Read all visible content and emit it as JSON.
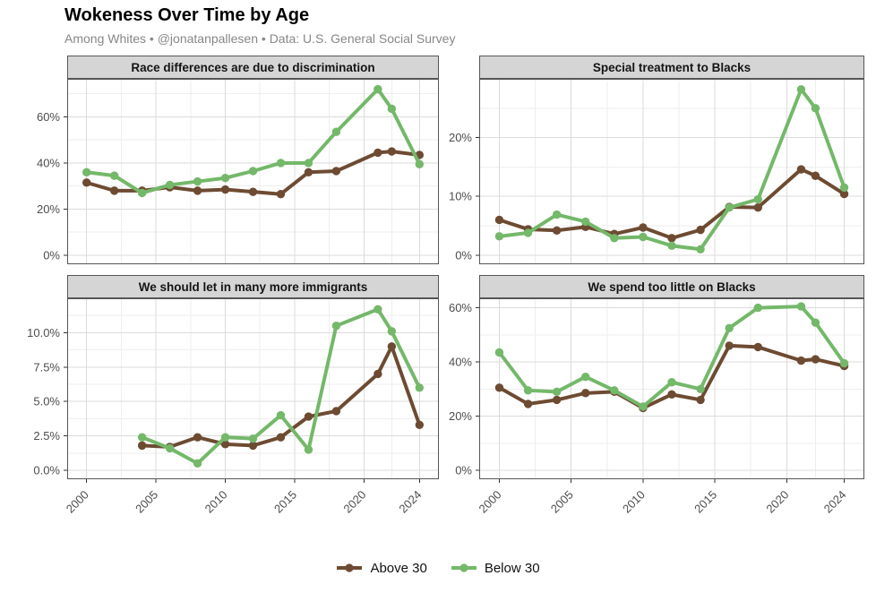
{
  "header": {
    "title": "Wokeness Over Time by Age",
    "subtitle": "Among Whites • @jonatanpallesen • Data: U.S. General Social Survey"
  },
  "legend": {
    "items": [
      {
        "label": "Above 30",
        "color": "#6d4b32"
      },
      {
        "label": "Below 30",
        "color": "#74b86a"
      }
    ]
  },
  "colors": {
    "above_30": "#6d4b32",
    "below_30": "#74b86a",
    "strip_background": "#d5d5d5",
    "panel_border": "#565656",
    "grid_major": "#dbdbdb",
    "grid_minor": "#eeeeee",
    "tick_label": "#4d4d4d"
  },
  "chart_data": [
    {
      "type": "line",
      "title": "Race differences are due to discrimination",
      "x": [
        2000,
        2002,
        2004,
        2006,
        2008,
        2010,
        2012,
        2014,
        2016,
        2018,
        2021,
        2022,
        2024
      ],
      "series": [
        {
          "name": "Above 30",
          "color": "#6d4b32",
          "values": [
            31.5,
            28,
            28,
            29.5,
            28,
            28.5,
            27.5,
            26.5,
            36,
            36.5,
            44.5,
            45,
            43.5
          ]
        },
        {
          "name": "Below 30",
          "color": "#74b86a",
          "values": [
            36,
            34.5,
            27,
            30.5,
            32,
            33.5,
            36.5,
            40,
            40,
            53.5,
            72,
            63.5,
            39.5
          ]
        }
      ],
      "ylim": [
        -3.9,
        76.5
      ],
      "yticks": [
        0,
        20,
        40,
        60
      ],
      "ytick_labels": [
        "0%",
        "20%",
        "40%",
        "60%"
      ],
      "yminor": [
        10,
        30,
        50,
        70
      ],
      "xlim": [
        1998.6,
        2025.4
      ],
      "xticks": [
        2000,
        2005,
        2010,
        2015,
        2020,
        2024
      ],
      "xtick_labels": [
        "2000",
        "2005",
        "2010",
        "2015",
        "2020",
        "2024"
      ],
      "xminor": [
        2002.5,
        2007.5,
        2012.5,
        2017.5,
        2022
      ],
      "grid": true,
      "legend_position": "bottom"
    },
    {
      "type": "line",
      "title": "Special treatment to Blacks",
      "x": [
        2000,
        2002,
        2004,
        2006,
        2008,
        2010,
        2012,
        2014,
        2016,
        2018,
        2021,
        2022,
        2024
      ],
      "series": [
        {
          "name": "Above 30",
          "color": "#6d4b32",
          "values": [
            6,
            4.4,
            4.2,
            4.8,
            3.6,
            4.7,
            2.9,
            4.3,
            8.2,
            8.1,
            14.6,
            13.5,
            10.4
          ]
        },
        {
          "name": "Below 30",
          "color": "#74b86a",
          "values": [
            3.2,
            3.8,
            6.9,
            5.7,
            2.9,
            3.1,
            1.6,
            1,
            8.1,
            9.5,
            28.2,
            25,
            11.5
          ]
        }
      ],
      "ylim": [
        -1.55,
        30
      ],
      "yticks": [
        0,
        10,
        20
      ],
      "ytick_labels": [
        "0%",
        "10%",
        "20%"
      ],
      "yminor": [
        5,
        15,
        25
      ],
      "xlim": [
        1998.6,
        2025.4
      ],
      "xticks": [
        2000,
        2005,
        2010,
        2015,
        2020,
        2024
      ],
      "xtick_labels": [
        "2000",
        "2005",
        "2010",
        "2015",
        "2020",
        "2024"
      ],
      "xminor": [
        2002.5,
        2007.5,
        2012.5,
        2017.5,
        2022
      ],
      "grid": true,
      "legend_position": "bottom"
    },
    {
      "type": "line",
      "title": "We should let in many more immigrants",
      "x": [
        2004,
        2006,
        2008,
        2010,
        2012,
        2014,
        2016,
        2018,
        2021,
        2022,
        2024
      ],
      "series": [
        {
          "name": "Above 30",
          "color": "#6d4b32",
          "values": [
            1.8,
            1.7,
            2.4,
            1.9,
            1.8,
            2.4,
            3.9,
            4.3,
            7,
            9,
            3.3
          ]
        },
        {
          "name": "Below 30",
          "color": "#74b86a",
          "values": [
            2.4,
            1.6,
            0.5,
            2.4,
            2.3,
            4,
            1.5,
            10.5,
            11.7,
            10.1,
            6
          ]
        }
      ],
      "ylim": [
        -0.65,
        12.5
      ],
      "yticks": [
        0,
        2.5,
        5,
        7.5,
        10
      ],
      "ytick_labels": [
        "0.0%",
        "2.5%",
        "5.0%",
        "7.5%",
        "10.0%"
      ],
      "yminor": [
        1.25,
        3.75,
        6.25,
        8.75,
        11.25
      ],
      "xlim": [
        1998.6,
        2025.4
      ],
      "xticks": [
        2000,
        2005,
        2010,
        2015,
        2020,
        2024
      ],
      "xtick_labels": [
        "2000",
        "2005",
        "2010",
        "2015",
        "2020",
        "2024"
      ],
      "xminor": [
        2002.5,
        2007.5,
        2012.5,
        2017.5,
        2022
      ],
      "grid": true,
      "legend_position": "bottom"
    },
    {
      "type": "line",
      "title": "We spend too little on Blacks",
      "x": [
        2000,
        2002,
        2004,
        2006,
        2008,
        2010,
        2012,
        2014,
        2016,
        2018,
        2021,
        2022,
        2024
      ],
      "series": [
        {
          "name": "Above 30",
          "color": "#6d4b32",
          "values": [
            30.5,
            24.5,
            26,
            28.5,
            29,
            23,
            28,
            26,
            46,
            45.5,
            40.5,
            41,
            38.5
          ]
        },
        {
          "name": "Below 30",
          "color": "#74b86a",
          "values": [
            43.5,
            29.5,
            29,
            34.5,
            29.5,
            23.5,
            32.5,
            30,
            52.5,
            60,
            60.5,
            54.5,
            39.5
          ]
        }
      ],
      "ylim": [
        -3.3,
        63.5
      ],
      "yticks": [
        0,
        20,
        40,
        60
      ],
      "ytick_labels": [
        "0%",
        "20%",
        "40%",
        "60%"
      ],
      "yminor": [
        10,
        30,
        50
      ],
      "xlim": [
        1998.6,
        2025.4
      ],
      "xticks": [
        2000,
        2005,
        2010,
        2015,
        2020,
        2024
      ],
      "xtick_labels": [
        "2000",
        "2005",
        "2010",
        "2015",
        "2020",
        "2024"
      ],
      "xminor": [
        2002.5,
        2007.5,
        2012.5,
        2017.5,
        2022
      ],
      "grid": true,
      "legend_position": "bottom"
    }
  ]
}
